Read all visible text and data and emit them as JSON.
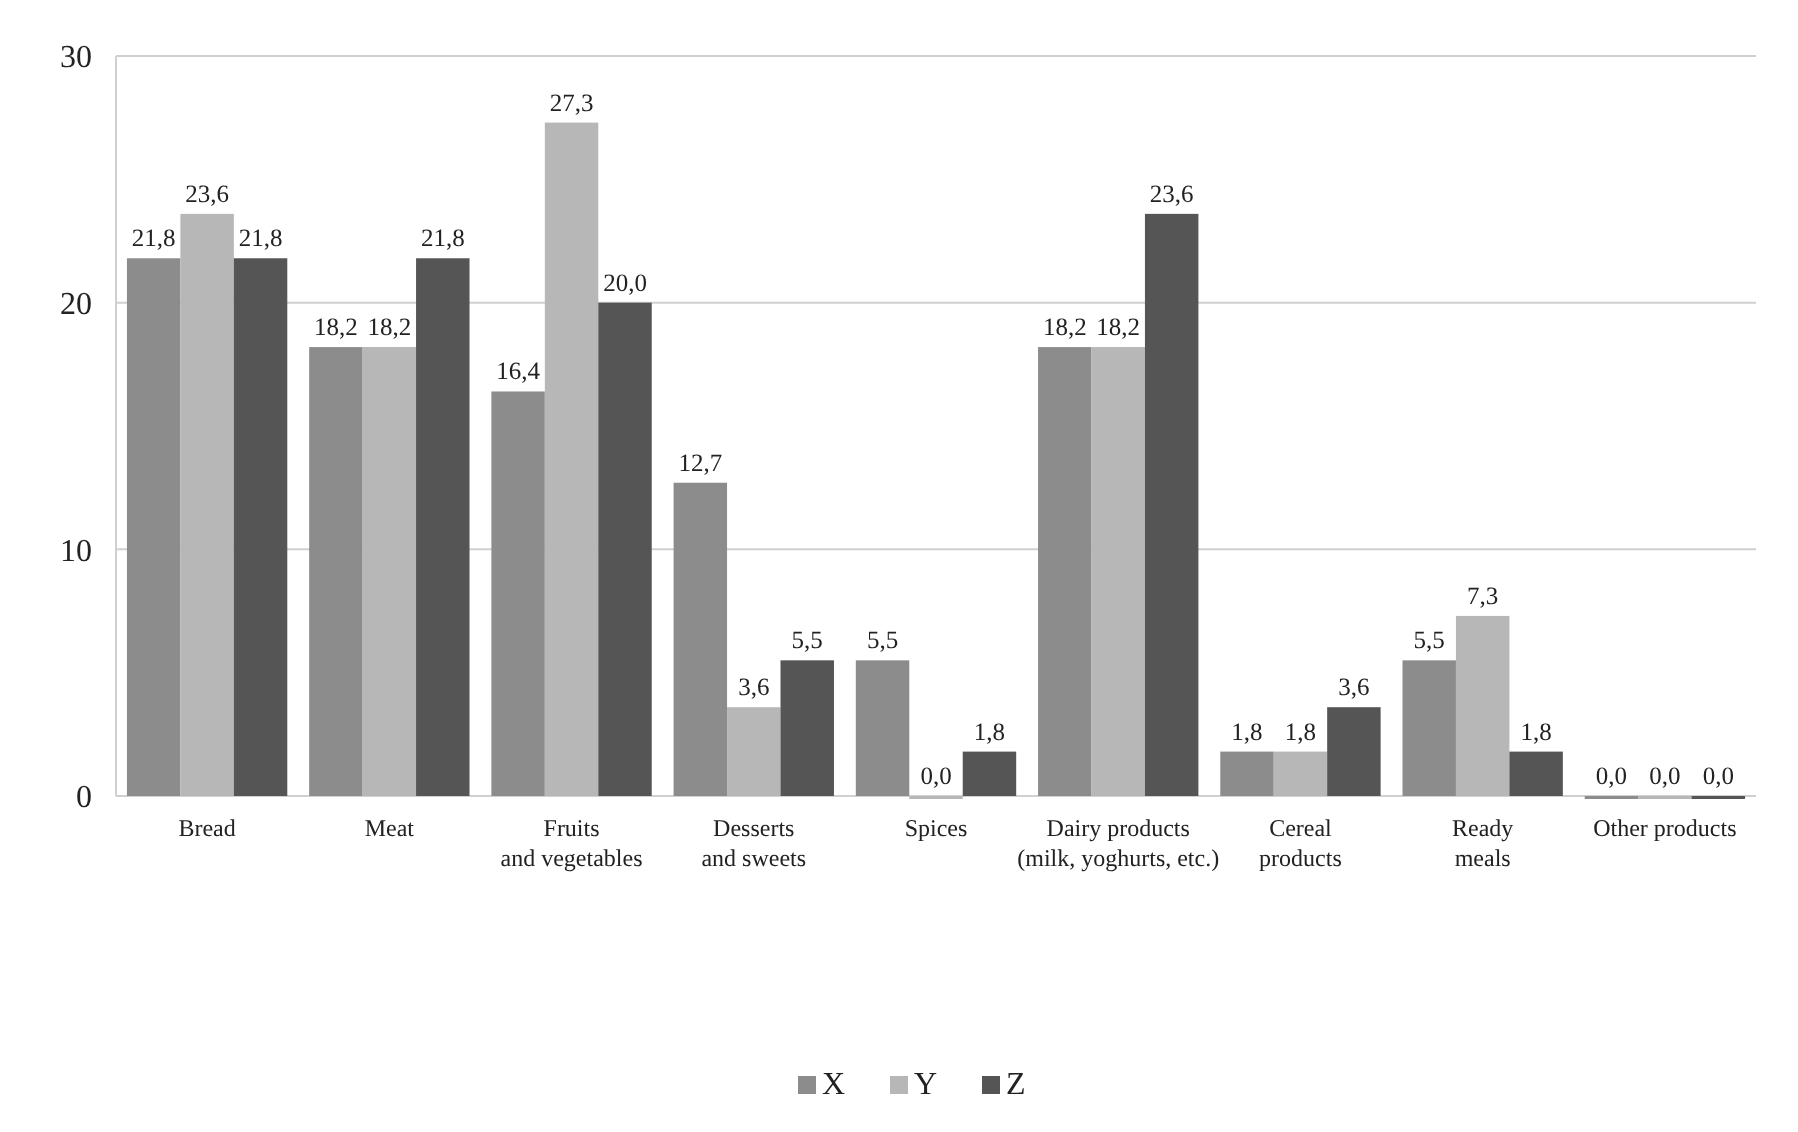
{
  "chart_data": {
    "type": "bar",
    "categories": [
      "Bread",
      "Meat",
      "Fruits\nand vegetables",
      "Desserts\nand sweets",
      "Spices",
      "Dairy products\n(milk, yoghurts, etc.)",
      "Cereal\nproducts",
      "Ready\nmeals",
      "Other products"
    ],
    "series": [
      {
        "name": "X",
        "color": "#8c8c8c",
        "values": [
          21.8,
          18.2,
          16.4,
          12.7,
          5.5,
          18.2,
          1.8,
          5.5,
          0.0
        ],
        "value_labels": [
          "21,8",
          "18,2",
          "16,4",
          "12,7",
          "5,5",
          "18,2",
          "1,8",
          "5,5",
          "0,0"
        ]
      },
      {
        "name": "Y",
        "color": "#b7b7b7",
        "values": [
          23.6,
          18.2,
          27.3,
          3.6,
          0.0,
          18.2,
          1.8,
          7.3,
          0.0
        ],
        "value_labels": [
          "23,6",
          "18,2",
          "27,3",
          "3,6",
          "0,0",
          "18,2",
          "1,8",
          "7,3",
          "0,0"
        ]
      },
      {
        "name": "Z",
        "color": "#555555",
        "values": [
          21.8,
          21.8,
          20.0,
          5.5,
          1.8,
          23.6,
          3.6,
          1.8,
          0.0
        ],
        "value_labels": [
          "21,8",
          "21,8",
          "20,0",
          "5,5",
          "1,8",
          "23,6",
          "3,6",
          "1,8",
          "0,0"
        ]
      }
    ],
    "ylim": [
      0,
      30
    ],
    "yticks": [
      0,
      10,
      20,
      30
    ],
    "grid": "y",
    "legend": "bottom"
  }
}
